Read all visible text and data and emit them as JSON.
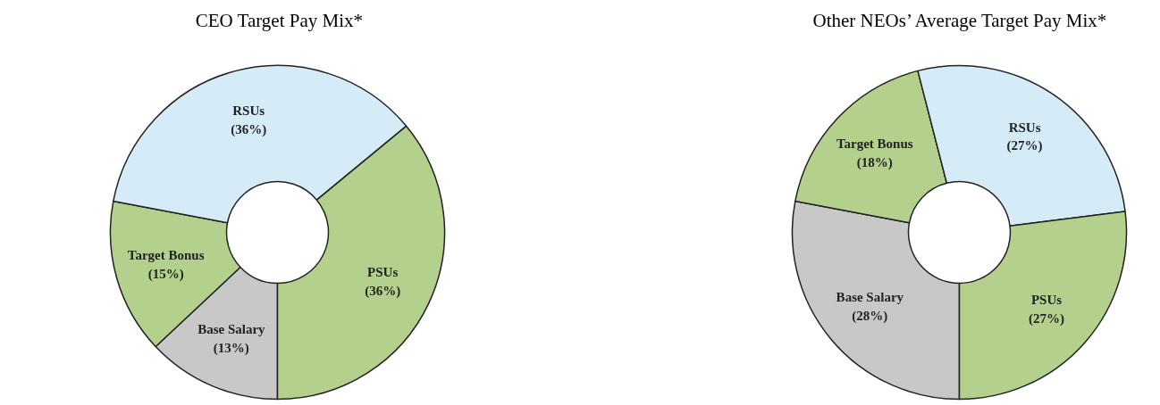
{
  "chart_data": [
    {
      "type": "donut",
      "title": "CEO Target Pay Mix*",
      "categories": [
        "Base Salary",
        "Target Bonus",
        "RSUs",
        "PSUs"
      ],
      "values": [
        13,
        15,
        36,
        36
      ],
      "value_labels": [
        "(13%)",
        "(15%)",
        "(36%)",
        "(36%)"
      ],
      "colors": [
        "#c8c8c8",
        "#b3d18c",
        "#d6ebf8",
        "#b3d18c"
      ]
    },
    {
      "type": "donut",
      "title": "Other NEOs’ Average Target Pay Mix*",
      "categories": [
        "Base Salary",
        "Target Bonus",
        "RSUs",
        "PSUs"
      ],
      "values": [
        28,
        18,
        27,
        27
      ],
      "value_labels": [
        "(28%)",
        "(18%)",
        "(27%)",
        "(27%)"
      ],
      "colors": [
        "#c8c8c8",
        "#b3d18c",
        "#d6ebf8",
        "#b3d18c"
      ]
    }
  ]
}
